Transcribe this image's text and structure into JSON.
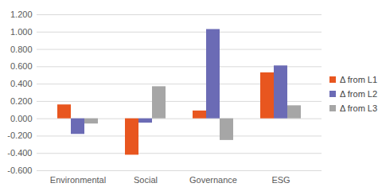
{
  "chart_data": {
    "type": "bar",
    "categories": [
      "Environmental",
      "Social",
      "Governance",
      "ESG"
    ],
    "series": [
      {
        "name": "Δ from L1",
        "color": "#e8561f",
        "values": [
          0.16,
          -0.42,
          0.09,
          0.53
        ]
      },
      {
        "name": "Δ from L2",
        "color": "#6b6bb5",
        "values": [
          -0.18,
          -0.05,
          1.03,
          0.61
        ]
      },
      {
        "name": "Δ from L3",
        "color": "#a6a6a6",
        "values": [
          -0.06,
          0.37,
          -0.25,
          0.15
        ]
      }
    ],
    "ylim": [
      -0.6,
      1.2
    ],
    "yticks": [
      {
        "value": -0.6,
        "label": "-0.600"
      },
      {
        "value": -0.4,
        "label": "-0.400"
      },
      {
        "value": -0.2,
        "label": "-0.200"
      },
      {
        "value": 0,
        "label": "0.000"
      },
      {
        "value": 0.2,
        "label": "0.200"
      },
      {
        "value": 0.4,
        "label": "0.400"
      },
      {
        "value": 0.6,
        "label": "0.600"
      },
      {
        "value": 0.8,
        "label": "0.800"
      },
      {
        "value": 1,
        "label": "1.000"
      },
      {
        "value": 1.2,
        "label": "1.200"
      }
    ],
    "grid": true,
    "legend": "right"
  }
}
